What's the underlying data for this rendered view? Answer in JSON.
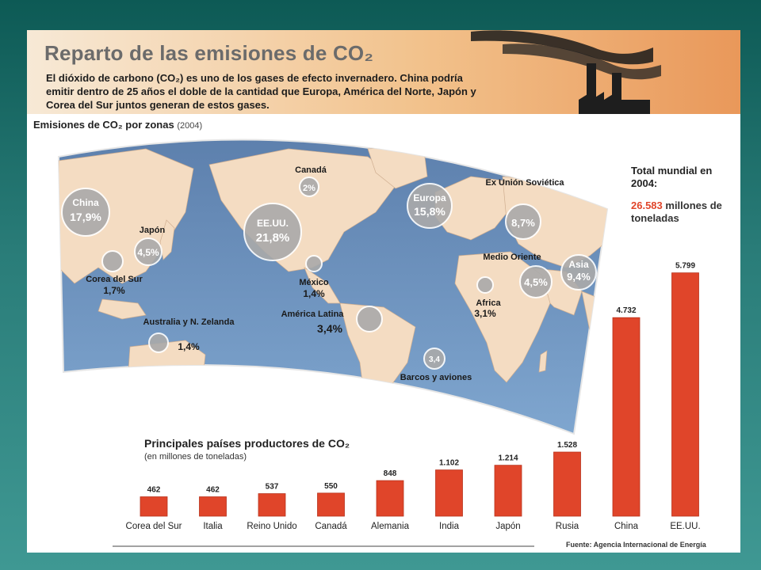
{
  "header": {
    "title": "Reparto de las emisiones de CO₂",
    "subtitle": "El dióxido de carbono (CO₂) es uno de los gases de efecto invernadero. China podría emitir dentro de 25 años el doble de la cantidad que Europa, América del Norte, Japón y Corea del Sur juntos generan de estos gases."
  },
  "zones": {
    "title": "Emisiones de CO₂ por zonas",
    "year": "(2004)",
    "items": [
      {
        "name": "China",
        "value": "17,9%"
      },
      {
        "name": "Japón",
        "value": "4,5%"
      },
      {
        "name": "Corea del Sur",
        "value": "1,7%"
      },
      {
        "name": "Australia y N. Zelanda",
        "value": "1,4%"
      },
      {
        "name": "Canadá",
        "value": "2%"
      },
      {
        "name": "EE.UU.",
        "value": "21,8%"
      },
      {
        "name": "México",
        "value": "1,4%"
      },
      {
        "name": "América Latina",
        "value": "3,4%"
      },
      {
        "name": "Europa",
        "value": "15,8%"
      },
      {
        "name": "Ex Unión Soviética",
        "value": "8,7%"
      },
      {
        "name": "Medio Oriente",
        "value": "4,5%"
      },
      {
        "name": "Asia",
        "value": "9,4%"
      },
      {
        "name": "Africa",
        "value": "3,1%"
      },
      {
        "name": "Barcos y aviones",
        "value": "3,4"
      }
    ]
  },
  "total": {
    "label": "Total mundial en 2004:",
    "value": "26.583",
    "unit": "millones de toneladas"
  },
  "chart_data": {
    "type": "bar",
    "title": "Principales países productores de CO₂",
    "subtitle": "(en millones de toneladas)",
    "categories": [
      "Corea del Sur",
      "Italia",
      "Reino Unido",
      "Canadá",
      "Alemania",
      "India",
      "Japón",
      "Rusia",
      "China",
      "EE.UU."
    ],
    "values": [
      462,
      462,
      537,
      550,
      848,
      1102,
      1214,
      1528,
      4732,
      5799
    ],
    "value_labels": [
      "462",
      "462",
      "537",
      "550",
      "848",
      "1.102",
      "1.214",
      "1.528",
      "4.732",
      "5.799"
    ],
    "ylim": [
      0,
      6000
    ],
    "grid": false,
    "bar_color": "#e0452a"
  },
  "source": "Fuente: Agencia Internacional de Energía"
}
